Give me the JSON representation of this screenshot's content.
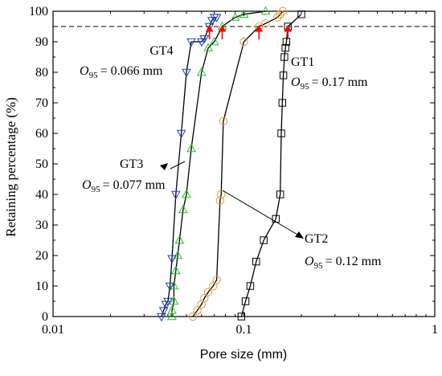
{
  "chart_data": {
    "type": "scatter",
    "xlabel": "Pore size (mm)",
    "ylabel": "Retaining percentage (%)",
    "xscale": "log",
    "xlim": [
      0.01,
      1
    ],
    "ylim": [
      0,
      100
    ],
    "xticks": [
      0.01,
      0.1,
      1
    ],
    "xtick_labels": [
      "0.01",
      "0.1",
      "1"
    ],
    "yticks": [
      0,
      10,
      20,
      30,
      40,
      50,
      60,
      70,
      80,
      90,
      100
    ],
    "ytick_labels": [
      "0",
      "10",
      "20",
      "30",
      "40",
      "50",
      "60",
      "70",
      "80",
      "90",
      "100"
    ],
    "grid": false,
    "reference_line": {
      "y": 95,
      "style": "dashed"
    },
    "series": [
      {
        "name": "GT1",
        "marker": "square",
        "color": "#000000",
        "x": [
          0.097,
          0.102,
          0.108,
          0.116,
          0.127,
          0.147,
          0.155,
          0.157,
          0.159,
          0.161,
          0.163,
          0.165,
          0.167,
          0.17,
          0.2
        ],
        "y": [
          0,
          5,
          10,
          18,
          25,
          32,
          40,
          60,
          70,
          79,
          85,
          88,
          90,
          95,
          99
        ],
        "annotation": {
          "label": "GT1",
          "o95_value": "= 0.17 mm"
        }
      },
      {
        "name": "GT2",
        "marker": "circle",
        "color": "#E69A3C",
        "x": [
          0.054,
          0.057,
          0.06,
          0.062,
          0.065,
          0.069,
          0.072,
          0.075,
          0.076,
          0.078,
          0.1,
          0.12,
          0.13,
          0.15,
          0.155,
          0.16
        ],
        "y": [
          0,
          2,
          4,
          6,
          8,
          10,
          12,
          38,
          40,
          64,
          90,
          95,
          96,
          98,
          99,
          100
        ],
        "annotation": {
          "label": "GT2",
          "o95_value": "= 0.12 mm"
        }
      },
      {
        "name": "GT3",
        "marker": "triangle-up",
        "color": "#22C322",
        "x": [
          0.042,
          0.042,
          0.043,
          0.043,
          0.044,
          0.045,
          0.046,
          0.048,
          0.05,
          0.053,
          0.06,
          0.065,
          0.07,
          0.077,
          0.09,
          0.1,
          0.13
        ],
        "y": [
          0,
          2,
          5,
          10,
          15,
          20,
          25,
          35,
          40,
          55,
          80,
          88,
          90,
          95,
          98,
          99,
          100
        ],
        "annotation": {
          "label": "GT3",
          "o95_value": "= 0.077 mm"
        }
      },
      {
        "name": "GT4",
        "marker": "triangle-down",
        "color": "#1F3FBF",
        "x": [
          0.037,
          0.038,
          0.039,
          0.04,
          0.041,
          0.042,
          0.044,
          0.047,
          0.05,
          0.053,
          0.06,
          0.062,
          0.066,
          0.068,
          0.07,
          0.072
        ],
        "y": [
          0,
          2,
          4,
          5,
          10,
          19,
          40,
          60,
          80,
          90,
          90,
          91,
          95,
          97,
          98,
          98
        ],
        "annotation": {
          "label": "GT4",
          "o95_value": "= 0.066 mm"
        }
      }
    ],
    "o95_symbol": {
      "main": "O",
      "sub": "95"
    },
    "o95_marker_color": "#FF0000"
  }
}
